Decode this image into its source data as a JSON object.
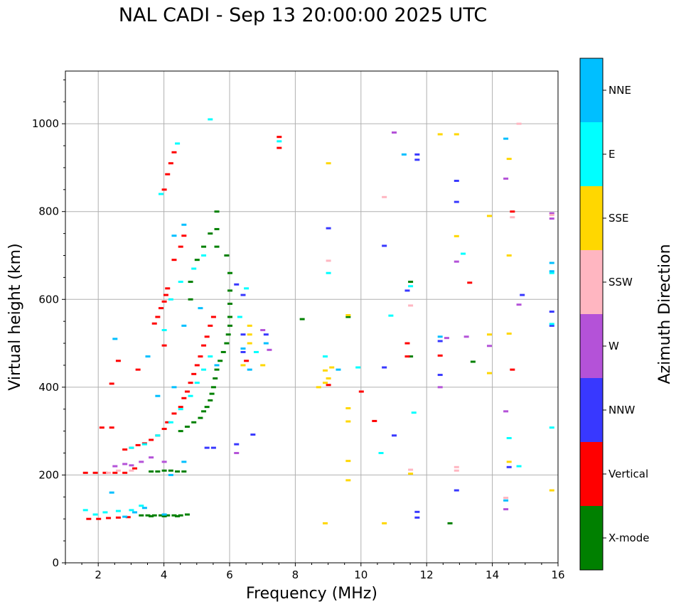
{
  "title": "NAL CADI - Sep 13 20:00:00 2025 UTC",
  "chart_data": {
    "type": "scatter",
    "title": "NAL CADI - Sep 13 20:00:00 2025 UTC",
    "xlabel": "Frequency (MHz)",
    "ylabel": "Virtual height (km)",
    "xlim": [
      1,
      16
    ],
    "ylim": [
      0,
      1120
    ],
    "x_ticks": [
      2,
      4,
      6,
      8,
      10,
      12,
      14,
      16
    ],
    "y_ticks": [
      0,
      200,
      400,
      600,
      800,
      1000
    ],
    "grid": true,
    "colorbar": {
      "label": "Azimuth Direction",
      "categories": [
        "X-mode",
        "Vertical",
        "NNW",
        "W",
        "SSW",
        "SSE",
        "E",
        "NNE"
      ],
      "colors": [
        "#008000",
        "#ff0000",
        "#3838ff",
        "#b452d8",
        "#ffb6c1",
        "#ffd700",
        "#00ffff",
        "#00bfff"
      ]
    },
    "series": [
      {
        "name": "X-mode",
        "points": [
          [
            3.3,
            108
          ],
          [
            3.5,
            108
          ],
          [
            3.7,
            108
          ],
          [
            3.9,
            108
          ],
          [
            4.1,
            108
          ],
          [
            4.3,
            108
          ],
          [
            4.5,
            108
          ],
          [
            4.7,
            110
          ],
          [
            3.6,
            106
          ],
          [
            4.0,
            106
          ],
          [
            4.4,
            106
          ],
          [
            3.6,
            208
          ],
          [
            3.8,
            208
          ],
          [
            4.0,
            210
          ],
          [
            4.2,
            210
          ],
          [
            4.4,
            208
          ],
          [
            4.6,
            208
          ],
          [
            4.5,
            300
          ],
          [
            4.7,
            310
          ],
          [
            4.9,
            320
          ],
          [
            5.1,
            330
          ],
          [
            5.2,
            345
          ],
          [
            5.3,
            355
          ],
          [
            5.4,
            370
          ],
          [
            5.45,
            385
          ],
          [
            5.5,
            400
          ],
          [
            5.55,
            420
          ],
          [
            5.6,
            440
          ],
          [
            5.7,
            460
          ],
          [
            5.8,
            480
          ],
          [
            5.9,
            500
          ],
          [
            5.95,
            520
          ],
          [
            6.0,
            540
          ],
          [
            6.0,
            560
          ],
          [
            6.0,
            590
          ],
          [
            6.0,
            620
          ],
          [
            6.0,
            660
          ],
          [
            5.9,
            700
          ],
          [
            5.6,
            720
          ],
          [
            5.6,
            760
          ],
          [
            5.6,
            800
          ],
          [
            5.4,
            750
          ],
          [
            5.2,
            720
          ],
          [
            5.0,
            690
          ],
          [
            4.8,
            640
          ],
          [
            4.8,
            600
          ],
          [
            8.2,
            555
          ],
          [
            9.6,
            560
          ],
          [
            11.5,
            640
          ],
          [
            11.5,
            470
          ],
          [
            12.7,
            90
          ],
          [
            13.4,
            458
          ]
        ]
      },
      {
        "name": "Vertical",
        "points": [
          [
            1.6,
            205
          ],
          [
            1.9,
            205
          ],
          [
            2.2,
            205
          ],
          [
            2.5,
            205
          ],
          [
            2.8,
            205
          ],
          [
            3.1,
            215
          ],
          [
            1.7,
            100
          ],
          [
            2.0,
            100
          ],
          [
            2.3,
            102
          ],
          [
            2.6,
            103
          ],
          [
            2.9,
            104
          ],
          [
            2.1,
            308
          ],
          [
            2.4,
            308
          ],
          [
            2.8,
            258
          ],
          [
            3.0,
            262
          ],
          [
            3.2,
            268
          ],
          [
            3.4,
            272
          ],
          [
            3.6,
            280
          ],
          [
            3.8,
            290
          ],
          [
            4.0,
            305
          ],
          [
            4.1,
            320
          ],
          [
            4.3,
            340
          ],
          [
            4.5,
            355
          ],
          [
            4.6,
            375
          ],
          [
            4.7,
            390
          ],
          [
            4.8,
            410
          ],
          [
            4.9,
            430
          ],
          [
            5.0,
            450
          ],
          [
            5.1,
            470
          ],
          [
            5.2,
            495
          ],
          [
            5.3,
            515
          ],
          [
            5.4,
            540
          ],
          [
            5.5,
            560
          ],
          [
            3.7,
            545
          ],
          [
            3.8,
            560
          ],
          [
            3.9,
            580
          ],
          [
            4.0,
            595
          ],
          [
            4.05,
            610
          ],
          [
            4.1,
            625
          ],
          [
            4.3,
            690
          ],
          [
            4.5,
            720
          ],
          [
            4.6,
            745
          ],
          [
            4.0,
            850
          ],
          [
            4.1,
            885
          ],
          [
            4.2,
            910
          ],
          [
            4.3,
            935
          ],
          [
            2.4,
            408
          ],
          [
            2.6,
            460
          ],
          [
            3.2,
            440
          ],
          [
            4.0,
            495
          ],
          [
            6.5,
            460
          ],
          [
            9.0,
            405
          ],
          [
            10.0,
            390
          ],
          [
            10.4,
            323
          ],
          [
            11.4,
            470
          ],
          [
            11.4,
            500
          ],
          [
            12.4,
            472
          ],
          [
            13.3,
            638
          ],
          [
            14.6,
            440
          ],
          [
            14.6,
            800
          ],
          [
            7.5,
            970
          ],
          [
            7.5,
            945
          ]
        ]
      },
      {
        "name": "NNW",
        "points": [
          [
            6.2,
            634
          ],
          [
            6.4,
            610
          ],
          [
            6.4,
            520
          ],
          [
            6.4,
            480
          ],
          [
            6.2,
            270
          ],
          [
            6.7,
            292
          ],
          [
            9.0,
            762
          ],
          [
            10.7,
            722
          ],
          [
            10.7,
            445
          ],
          [
            11.0,
            290
          ],
          [
            11.4,
            620
          ],
          [
            11.7,
            918
          ],
          [
            11.7,
            930
          ],
          [
            11.7,
            103
          ],
          [
            11.7,
            116
          ],
          [
            12.4,
            428
          ],
          [
            12.4,
            505
          ],
          [
            12.9,
            870
          ],
          [
            12.9,
            822
          ],
          [
            12.9,
            165
          ],
          [
            14.5,
            218
          ],
          [
            14.9,
            610
          ],
          [
            15.8,
            572
          ],
          [
            15.8,
            540
          ],
          [
            5.3,
            262
          ],
          [
            5.5,
            262
          ],
          [
            7.1,
            520
          ]
        ]
      },
      {
        "name": "W",
        "points": [
          [
            2.5,
            220
          ],
          [
            2.8,
            225
          ],
          [
            3.0,
            222
          ],
          [
            3.3,
            230
          ],
          [
            3.6,
            240
          ],
          [
            4.0,
            230
          ],
          [
            6.2,
            250
          ],
          [
            7.0,
            530
          ],
          [
            7.2,
            485
          ],
          [
            11.0,
            980
          ],
          [
            12.4,
            400
          ],
          [
            12.6,
            512
          ],
          [
            12.9,
            686
          ],
          [
            13.2,
            515
          ],
          [
            13.9,
            494
          ],
          [
            14.4,
            875
          ],
          [
            14.4,
            345
          ],
          [
            14.4,
            122
          ],
          [
            14.8,
            588
          ],
          [
            15.8,
            784
          ],
          [
            15.8,
            796
          ]
        ]
      },
      {
        "name": "SSW",
        "points": [
          [
            2.3,
            205
          ],
          [
            2.6,
            210
          ],
          [
            3.0,
            210
          ],
          [
            9.0,
            688
          ],
          [
            10.7,
            833
          ],
          [
            11.5,
            586
          ],
          [
            11.5,
            212
          ],
          [
            12.9,
            210
          ],
          [
            12.9,
            218
          ],
          [
            14.4,
            148
          ],
          [
            14.6,
            787
          ],
          [
            14.8,
            1000
          ],
          [
            15.8,
            792
          ]
        ]
      },
      {
        "name": "SSE",
        "points": [
          [
            6.6,
            540
          ],
          [
            6.6,
            520
          ],
          [
            6.6,
            500
          ],
          [
            6.4,
            450
          ],
          [
            7.0,
            450
          ],
          [
            8.7,
            400
          ],
          [
            8.9,
            410
          ],
          [
            8.9,
            438
          ],
          [
            9.0,
            420
          ],
          [
            9.0,
            910
          ],
          [
            9.1,
            445
          ],
          [
            8.9,
            90
          ],
          [
            9.6,
            188
          ],
          [
            9.6,
            232
          ],
          [
            9.6,
            322
          ],
          [
            9.6,
            352
          ],
          [
            9.6,
            564
          ],
          [
            10.7,
            90
          ],
          [
            11.5,
            203
          ],
          [
            12.4,
            976
          ],
          [
            12.9,
            976
          ],
          [
            12.9,
            744
          ],
          [
            13.9,
            432
          ],
          [
            13.9,
            520
          ],
          [
            13.9,
            790
          ],
          [
            14.5,
            230
          ],
          [
            14.5,
            522
          ],
          [
            14.5,
            700
          ],
          [
            14.5,
            920
          ],
          [
            15.8,
            165
          ]
        ]
      },
      {
        "name": "E",
        "points": [
          [
            1.6,
            120
          ],
          [
            1.9,
            110
          ],
          [
            2.2,
            115
          ],
          [
            2.6,
            118
          ],
          [
            3.0,
            120
          ],
          [
            3.3,
            130
          ],
          [
            3.0,
            262
          ],
          [
            3.4,
            270
          ],
          [
            3.8,
            290
          ],
          [
            4.2,
            320
          ],
          [
            4.5,
            350
          ],
          [
            4.8,
            380
          ],
          [
            5.0,
            410
          ],
          [
            5.2,
            440
          ],
          [
            5.4,
            470
          ],
          [
            4.0,
            530
          ],
          [
            4.2,
            600
          ],
          [
            4.5,
            640
          ],
          [
            4.9,
            670
          ],
          [
            5.2,
            700
          ],
          [
            3.9,
            840
          ],
          [
            4.4,
            955
          ],
          [
            5.4,
            1010
          ],
          [
            6.3,
            560
          ],
          [
            6.5,
            625
          ],
          [
            6.8,
            480
          ],
          [
            8.9,
            470
          ],
          [
            9.0,
            660
          ],
          [
            9.9,
            445
          ],
          [
            10.6,
            250
          ],
          [
            10.9,
            563
          ],
          [
            11.6,
            342
          ],
          [
            11.5,
            630
          ],
          [
            13.1,
            704
          ],
          [
            14.5,
            284
          ],
          [
            14.8,
            220
          ],
          [
            15.8,
            660
          ],
          [
            15.8,
            544
          ],
          [
            15.8,
            308
          ],
          [
            7.5,
            960
          ]
        ]
      },
      {
        "name": "NNE",
        "points": [
          [
            2.8,
            105
          ],
          [
            3.1,
            115
          ],
          [
            3.4,
            125
          ],
          [
            4.0,
            110
          ],
          [
            2.4,
            160
          ],
          [
            2.5,
            510
          ],
          [
            3.5,
            470
          ],
          [
            3.8,
            380
          ],
          [
            4.3,
            400
          ],
          [
            4.6,
            540
          ],
          [
            5.1,
            580
          ],
          [
            5.6,
            450
          ],
          [
            4.3,
            745
          ],
          [
            4.6,
            770
          ],
          [
            4.2,
            200
          ],
          [
            4.6,
            230
          ],
          [
            6.4,
            488
          ],
          [
            6.6,
            440
          ],
          [
            7.1,
            500
          ],
          [
            9.3,
            440
          ],
          [
            11.3,
            930
          ],
          [
            12.4,
            515
          ],
          [
            14.4,
            966
          ],
          [
            14.4,
            142
          ],
          [
            15.8,
            683
          ],
          [
            15.8,
            664
          ]
        ]
      }
    ]
  }
}
